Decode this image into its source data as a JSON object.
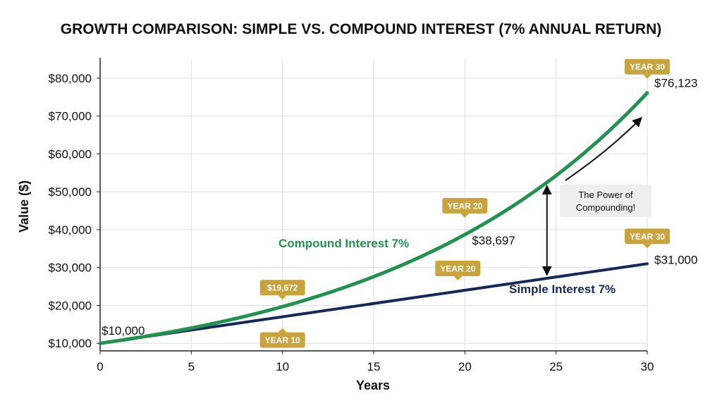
{
  "chart_data": {
    "type": "line",
    "title": "GROWTH COMPARISON: SIMPLE VS. COMPOUND INTEREST (7% ANNUAL RETURN)",
    "xlabel": "Years",
    "ylabel": "Value ($)",
    "xlim": [
      0,
      30
    ],
    "ylim": [
      8000,
      85000
    ],
    "x_ticks": [
      0,
      5,
      10,
      15,
      20,
      25,
      30
    ],
    "y_ticks": [
      10000,
      20000,
      30000,
      40000,
      50000,
      60000,
      70000,
      80000
    ],
    "y_tick_labels": [
      "$10,000",
      "$20,000",
      "$30,000",
      "$40,000",
      "$50,000",
      "$60,000",
      "$70,000",
      "$80,000"
    ],
    "grid": true,
    "series": [
      {
        "name": "Compound Interest 7%",
        "color": "#239150",
        "principal": 10000,
        "rate": 0.07,
        "model": "compound"
      },
      {
        "name": "Simple Interest 7%",
        "color": "#14285a",
        "principal": 10000,
        "rate": 0.07,
        "model": "simple"
      }
    ],
    "point_labels": [
      {
        "x": 0,
        "y": 10000,
        "text": "$10,000"
      },
      {
        "x": 20,
        "y": 38697,
        "text": "$38,697"
      },
      {
        "x": 30,
        "y": 76123,
        "text": "$76,123"
      },
      {
        "x": 30,
        "y": 31000,
        "text": "$31,000"
      }
    ],
    "badges": [
      {
        "x": 10,
        "y": 19672,
        "text": "$19,672",
        "side": "above"
      },
      {
        "x": 10,
        "y": 17000,
        "text": "YEAR 10",
        "side": "below"
      },
      {
        "x": 20,
        "y": 38697,
        "text": "YEAR 20",
        "side": "above"
      },
      {
        "x": 20,
        "y": 24000,
        "text": "YEAR 20",
        "side": "above"
      },
      {
        "x": 30,
        "y": 76123,
        "text": "YEAR 30",
        "side": "above"
      },
      {
        "x": 30,
        "y": 31000,
        "text": "YEAR 30",
        "side": "above"
      }
    ],
    "badge_color": "#c9a43c",
    "annotation": {
      "lines": [
        "The Power of",
        "Compounding!"
      ]
    }
  }
}
